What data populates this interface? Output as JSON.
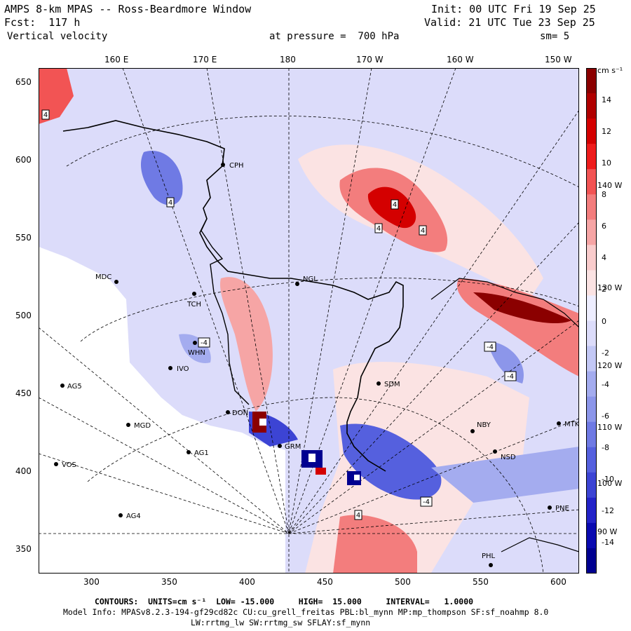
{
  "header": {
    "title": "AMPS 8-km MPAS -- Ross-Beardmore Window",
    "forecast": "Fcst:  117 h",
    "variable": "Vertical velocity",
    "init": "Init: 00 UTC Fri 19 Sep 25",
    "valid": "Valid: 21 UTC Tue 23 Sep 25",
    "pressure": "at pressure =  700 hPa",
    "smoothing": "sm= 5"
  },
  "axes": {
    "top_labels": [
      "160 E",
      "170 E",
      "180",
      "170 W",
      "160 W",
      "150 W"
    ],
    "left_labels": [
      "650",
      "600",
      "550",
      "500",
      "450",
      "400",
      "350"
    ],
    "bottom_labels": [
      "300",
      "350",
      "400",
      "450",
      "500",
      "550",
      "600"
    ],
    "right_meridian_labels": [
      "140 W",
      "130 W",
      "120 W",
      "110 W",
      "100 W",
      "90 W"
    ]
  },
  "colorbar": {
    "units": "cm s⁻¹",
    "ticks": [
      "14",
      "12",
      "10",
      "8",
      "6",
      "4",
      "2",
      "0",
      "-2",
      "-4",
      "-6",
      "-8",
      "-10",
      "-12",
      "-14"
    ],
    "colors": [
      "#8b0000",
      "#b00000",
      "#d40000",
      "#ee1c1c",
      "#f25454",
      "#f37d7d",
      "#f6a5a5",
      "#f9cccc",
      "#fbe3e3",
      "#eeeeff",
      "#dcdcfa",
      "#c3c8f5",
      "#a4acef",
      "#8c96ea",
      "#6f7ae4",
      "#5560de",
      "#3c44d4",
      "#2323c8",
      "#0a0ab0",
      "#000090"
    ]
  },
  "stations": [
    {
      "name": "CPH"
    },
    {
      "name": "MDC"
    },
    {
      "name": "NGL"
    },
    {
      "name": "TCH"
    },
    {
      "name": "WHN"
    },
    {
      "name": "IVO"
    },
    {
      "name": "AG5"
    },
    {
      "name": "SDM"
    },
    {
      "name": "MGD"
    },
    {
      "name": "AG1"
    },
    {
      "name": "VOS"
    },
    {
      "name": "AG4"
    },
    {
      "name": "NBY"
    },
    {
      "name": "NSD"
    },
    {
      "name": "MTK"
    },
    {
      "name": "PNE"
    },
    {
      "name": "PHL"
    },
    {
      "name": "GRM"
    },
    {
      "name": "DON"
    }
  ],
  "contour_labels": [
    "4",
    "4",
    "4",
    "4",
    "4",
    "-4",
    "-4",
    "-4",
    "-4",
    "4"
  ],
  "footer": {
    "contours": "CONTOURS:  UNITS=cm s⁻¹  LOW= -15.000     HIGH=  15.000     INTERVAL=   1.0000",
    "model_info": "Model Info: MPASv8.2.3-194-gf29cd82c CU:cu_grell_freitas PBL:bl_mynn MP:mp_thompson SF:sf_noahmp 8.0",
    "radiation": "LW:rrtmg_lw SW:rrtmg_sw SFLAY:sf_mynn"
  }
}
